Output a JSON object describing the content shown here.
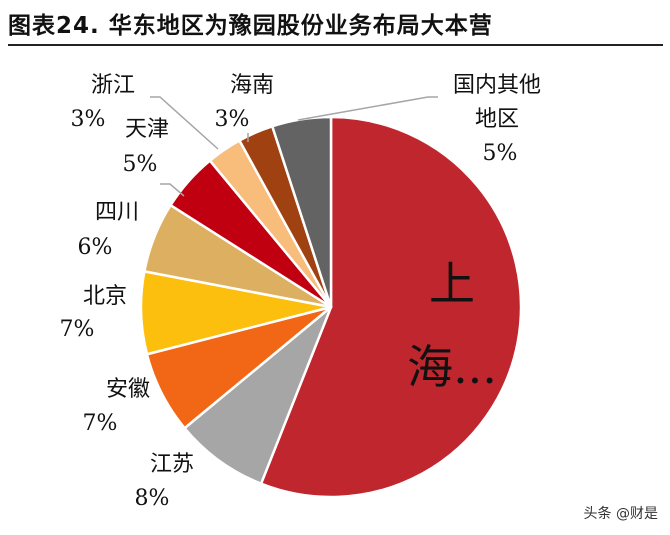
{
  "header": {
    "title": "图表24. 华东地区为豫园股份业务布局大本营"
  },
  "chart_data": {
    "type": "pie",
    "title": "图表24. 华东地区为豫园股份业务布局大本营",
    "slices": [
      {
        "label": "上海...",
        "value": 56,
        "value_label": "",
        "color": "#c0262d"
      },
      {
        "label": "江苏",
        "value": 8,
        "value_label": "8%",
        "color": "#a6a6a6"
      },
      {
        "label": "安徽",
        "value": 7,
        "value_label": "7%",
        "color": "#f26716"
      },
      {
        "label": "北京",
        "value": 7,
        "value_label": "7%",
        "color": "#fdbf0e"
      },
      {
        "label": "四川",
        "value": 6,
        "value_label": "6%",
        "color": "#ddb061"
      },
      {
        "label": "天津",
        "value": 5,
        "value_label": "5%",
        "color": "#c00010"
      },
      {
        "label": "浙江",
        "value": 3,
        "value_label": "3%",
        "color": "#f8bc7b"
      },
      {
        "label": "海南",
        "value": 3,
        "value_label": "3%",
        "color": "#a04112"
      },
      {
        "label": "国内其他\n地区",
        "value": 5,
        "value_label": "5%",
        "color": "#636363"
      }
    ]
  },
  "watermark": {
    "text": "头条 @财是"
  }
}
